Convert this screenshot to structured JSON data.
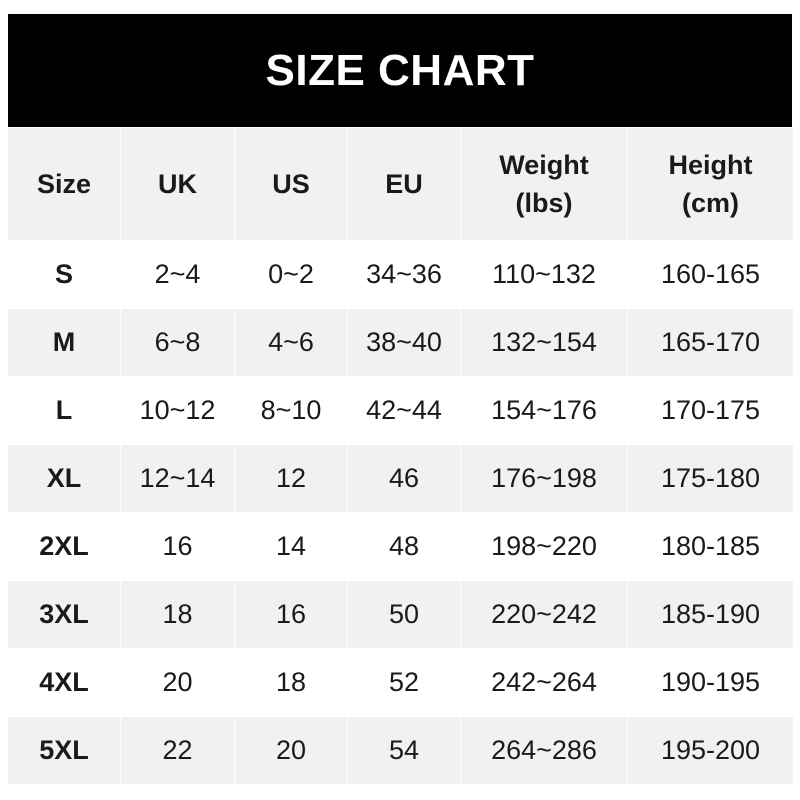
{
  "title": "SIZE CHART",
  "headers": [
    "Size",
    "UK",
    "US",
    "EU",
    "Weight\n(lbs)",
    "Height\n(cm)"
  ],
  "header_lines": [
    [
      "Size"
    ],
    [
      "UK"
    ],
    [
      "US"
    ],
    [
      "EU"
    ],
    [
      "Weight",
      "(lbs)"
    ],
    [
      "Height",
      "(cm)"
    ]
  ],
  "rows": [
    [
      "S",
      "2~4",
      "0~2",
      "34~36",
      "110~132",
      "160-165"
    ],
    [
      "M",
      "6~8",
      "4~6",
      "38~40",
      "132~154",
      "165-170"
    ],
    [
      "L",
      "10~12",
      "8~10",
      "42~44",
      "154~176",
      "170-175"
    ],
    [
      "XL",
      "12~14",
      "12",
      "46",
      "176~198",
      "175-180"
    ],
    [
      "2XL",
      "16",
      "14",
      "48",
      "198~220",
      "180-185"
    ],
    [
      "3XL",
      "18",
      "16",
      "50",
      "220~242",
      "185-190"
    ],
    [
      "4XL",
      "20",
      "18",
      "52",
      "242~264",
      "190-195"
    ],
    [
      "5XL",
      "22",
      "20",
      "54",
      "264~286",
      "195-200"
    ]
  ],
  "colors": {
    "banner": "#000000",
    "stripe": "#f1f1f1",
    "text": "#1a1a1a"
  }
}
